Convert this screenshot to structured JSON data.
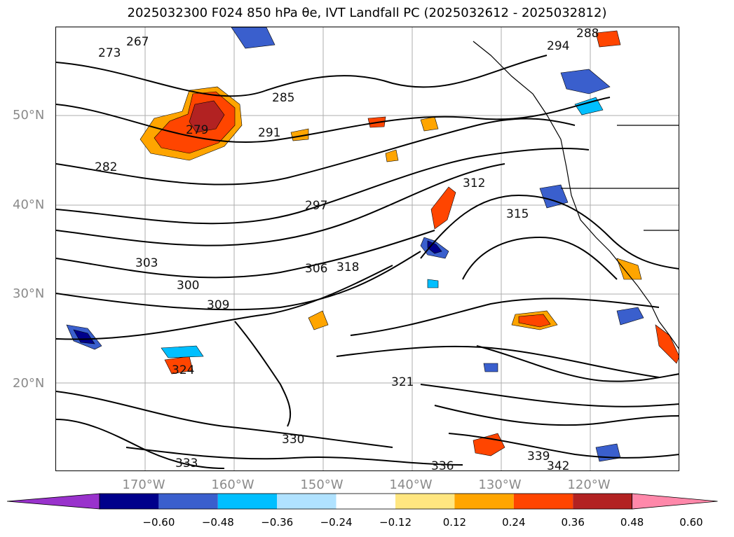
{
  "title": "2025032300 F024 850 hPa θe, IVT Landfall PC (2025032612 - 2025032812)",
  "lat_labels": [
    "50°N",
    "40°N",
    "30°N",
    "20°N"
  ],
  "lon_labels": [
    "170°W",
    "160°W",
    "150°W",
    "140°W",
    "130°W",
    "120°W"
  ],
  "contour_labels": [
    "267",
    "273",
    "279",
    "282",
    "285",
    "288",
    "291",
    "294",
    "297",
    "300",
    "303",
    "306",
    "309",
    "312",
    "315",
    "318",
    "321",
    "324",
    "330",
    "333",
    "336",
    "339",
    "342"
  ],
  "colorbar": {
    "ticks": [
      "−0.60",
      "−0.48",
      "−0.36",
      "−0.24",
      "−0.12",
      "0.12",
      "0.24",
      "0.36",
      "0.48",
      "0.60"
    ],
    "colors": [
      "#9932cc",
      "#00008b",
      "#3a5fcd",
      "#00bfff",
      "#b0e2ff",
      "#ffffff",
      "#ffe680",
      "#ffa500",
      "#ff4500",
      "#b22222",
      "#ff88aa"
    ]
  },
  "fill_colors": {
    "pos_outer": "#ffe680",
    "pos_mid": "#ffa500",
    "pos_inner": "#ff4500",
    "pos_core": "#b22222",
    "neg_outer": "#b0e2ff",
    "neg_mid": "#00bfff",
    "neg_inner": "#3a5fcd",
    "neg_core": "#00008b"
  }
}
